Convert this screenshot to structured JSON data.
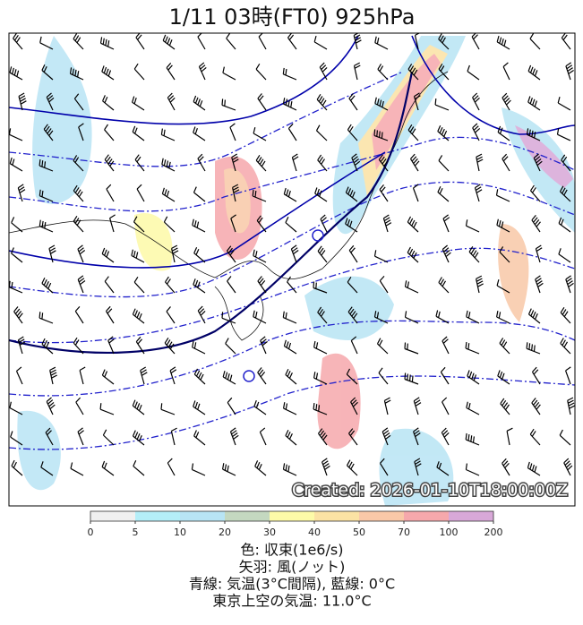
{
  "title": "1/11  03時(FT0)    925hPa",
  "stamp": "Created: 2026-01-10T18:00:00Z",
  "colorbar": {
    "ticks": [
      0,
      5,
      10,
      20,
      30,
      40,
      50,
      70,
      100,
      200
    ],
    "colors": [
      "#f0f0f0",
      "#b4eef8",
      "#b8e4f4",
      "#c4d8c0",
      "#fdfaa8",
      "#fbe2a4",
      "#f9c8a8",
      "#f6a8ac",
      "#d8a8d8"
    ]
  },
  "caption": [
    "色: 収束(1e6/s)",
    "矢羽: 風(ノット)",
    "青線: 気温(3°C間隔), 藍線: 0°C",
    "東京上空の気温: 11.0°C"
  ]
}
